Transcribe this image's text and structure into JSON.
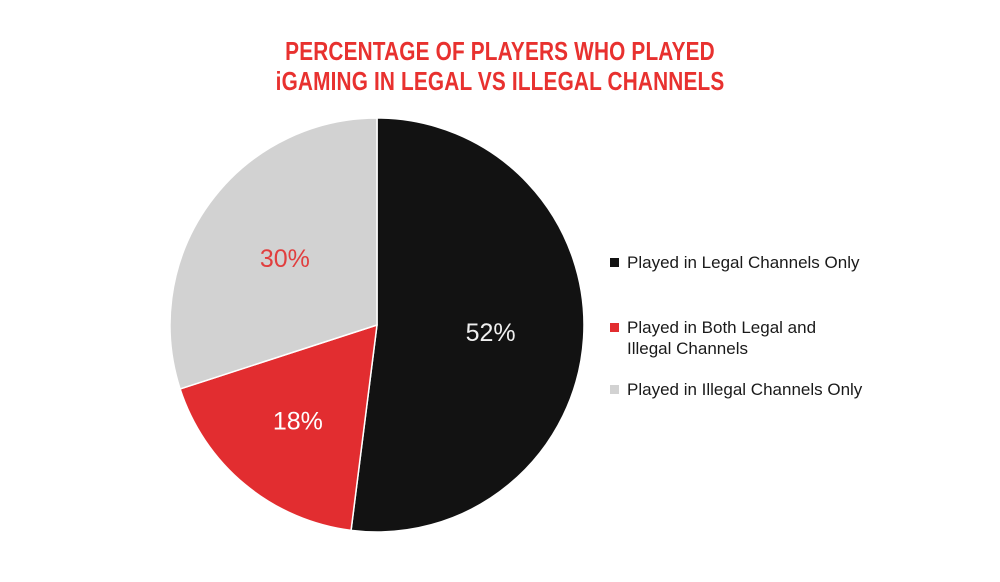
{
  "title": {
    "text": "PERCENTAGE OF PLAYERS WHO PLAYED\niGAMING IN LEGAL VS ILLEGAL CHANNELS"
  },
  "colors": {
    "background": "#ffffff",
    "title_red": "#e8312f",
    "slice_black": "#121212",
    "slice_red": "#e22d30",
    "slice_gray": "#d2d2d2",
    "legend_text": "#1a1a1a"
  },
  "chart_data": {
    "type": "pie",
    "title": "PERCENTAGE OF PLAYERS WHO PLAYED iGAMING IN LEGAL VS ILLEGAL CHANNELS",
    "start_angle_deg": 0,
    "direction": "clockwise",
    "radius_px": 207,
    "legend_position": "right",
    "slices": [
      {
        "label": "Played in Legal Channels Only",
        "value": 52,
        "display": "52%",
        "color": "#121212",
        "label_color": "#efefef",
        "label_radius_frac": 0.55
      },
      {
        "label": "Played in Both Legal and Illegal Channels",
        "value": 18,
        "display": "18%",
        "color": "#e22d30",
        "label_color": "#ffffff",
        "label_radius_frac": 0.6
      },
      {
        "label": "Played in Illegal Channels Only",
        "value": 30,
        "display": "30%",
        "color": "#d2d2d2",
        "label_color": "#e13e3e",
        "label_radius_frac": 0.55
      }
    ]
  },
  "legend": {
    "items": [
      {
        "label": "Played in Legal Channels Only",
        "color": "#121212"
      },
      {
        "label": "Played in Both Legal and\nIllegal Channels",
        "color": "#e22d30"
      },
      {
        "label": "Played in Illegal Channels Only",
        "color": "#d2d2d2"
      }
    ]
  }
}
